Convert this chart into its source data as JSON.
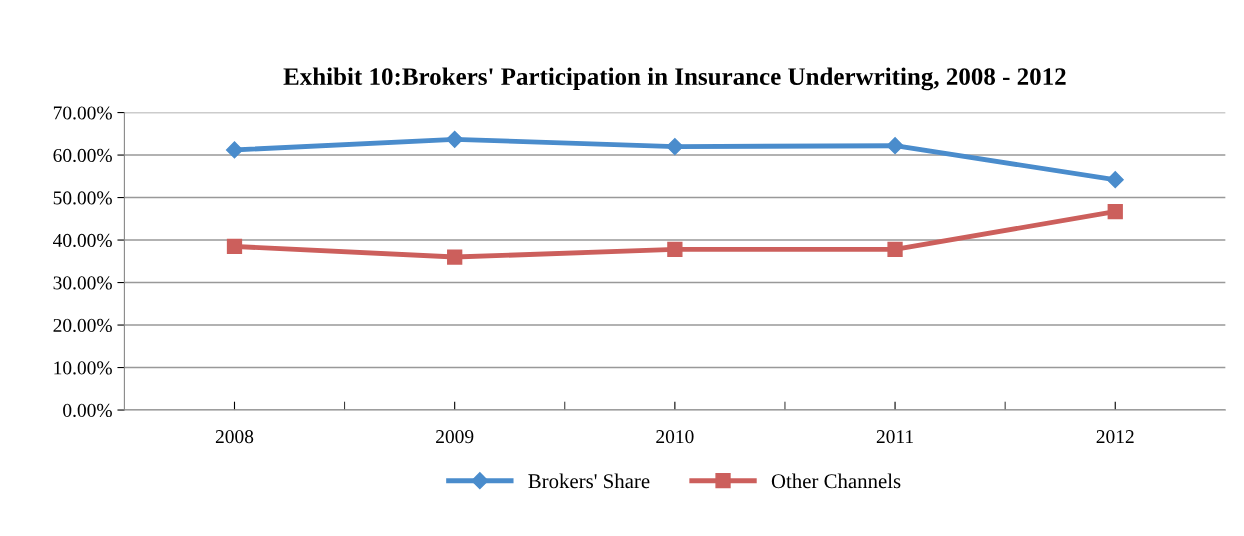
{
  "chart_data": {
    "type": "line",
    "title": "Exhibit 10:Brokers' Participation in Insurance Underwriting, 2008 - 2012",
    "categories": [
      "2008",
      "2009",
      "2010",
      "2011",
      "2012"
    ],
    "series": [
      {
        "name": "Brokers' Share",
        "color": "#4a8ccc",
        "marker": "diamond",
        "values": [
          61.2,
          63.7,
          62.0,
          62.2,
          54.2
        ]
      },
      {
        "name": "Other Channels",
        "color": "#cc5f5c",
        "marker": "square",
        "values": [
          38.5,
          36.0,
          37.8,
          37.8,
          46.7
        ]
      }
    ],
    "ylim": [
      0,
      70
    ],
    "yticks": [
      {
        "value": 0,
        "label": "0.00%"
      },
      {
        "value": 10,
        "label": "10.00%"
      },
      {
        "value": 20,
        "label": "20.00%"
      },
      {
        "value": 30,
        "label": "30.00%"
      },
      {
        "value": 40,
        "label": "40.00%"
      },
      {
        "value": 50,
        "label": "50.00%"
      },
      {
        "value": 60,
        "label": "60.00%"
      },
      {
        "value": 70,
        "label": "70.00%"
      }
    ],
    "grid": "y",
    "legend": "bottom",
    "line_style": "solid"
  }
}
